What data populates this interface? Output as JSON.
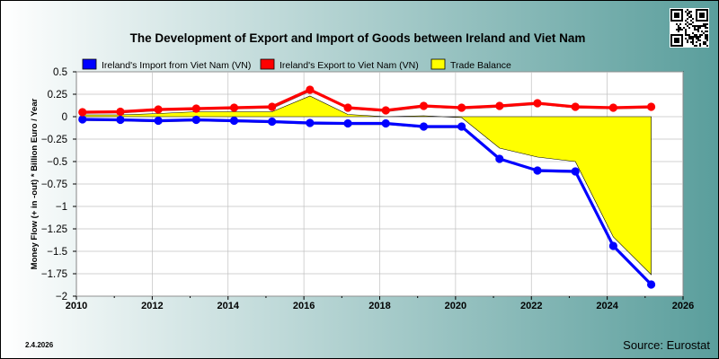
{
  "chart_data": {
    "type": "line",
    "title": "The Development of Export and Import of Goods between Ireland and Viet Nam",
    "ylabel": "Money Flow (+ in -out) * Billion Euro / Year",
    "xlabel": "",
    "xlim": [
      2010,
      2026
    ],
    "ylim": [
      -2,
      0.5
    ],
    "x_ticks": [
      "2010",
      "2012",
      "2014",
      "2016",
      "2018",
      "2020",
      "2022",
      "2024",
      "2026"
    ],
    "y_ticks": [
      "0.5",
      "0.25",
      "0",
      "-0.25",
      "-0.5",
      "-0.75",
      "-1",
      "-1.25",
      "-1.5",
      "-1.75",
      "-2"
    ],
    "grid": true,
    "legend_placement": "top",
    "x": [
      2010.16,
      2011.16,
      2012.16,
      2013.16,
      2014.16,
      2015.16,
      2016.16,
      2017.16,
      2018.16,
      2019.16,
      2020.16,
      2021.16,
      2022.16,
      2023.16,
      2024.16,
      2025.16
    ],
    "series": [
      {
        "name": "Ireland's Import from Viet Nam (VN)",
        "color": "#0000ff",
        "values": [
          -0.03,
          -0.035,
          -0.045,
          -0.035,
          -0.045,
          -0.055,
          -0.07,
          -0.075,
          -0.075,
          -0.11,
          -0.11,
          -0.47,
          -0.6,
          -0.61,
          -1.44,
          -1.87
        ]
      },
      {
        "name": "Ireland's Export to Viet Nam (VN)",
        "color": "#ff0000",
        "values": [
          0.05,
          0.055,
          0.08,
          0.09,
          0.1,
          0.11,
          0.3,
          0.1,
          0.07,
          0.12,
          0.1,
          0.12,
          0.15,
          0.11,
          0.1,
          0.11
        ]
      },
      {
        "name": "Trade Balance",
        "color": "#ffff00",
        "values": [
          0.02,
          0.02,
          0.035,
          0.055,
          0.055,
          0.055,
          0.23,
          0.025,
          0.0,
          0.01,
          -0.01,
          -0.35,
          -0.45,
          -0.5,
          -1.34,
          -1.76
        ]
      }
    ]
  },
  "date_stamp": "2.4.2026",
  "source": "Source: Eurostat",
  "colors": {
    "bg_left": "#ffffff",
    "bg_right": "#5a9e9c",
    "plot_bg": "#ffffff",
    "grid": "#c0c0c0"
  },
  "icons": {
    "qr": "qr-code-icon"
  }
}
